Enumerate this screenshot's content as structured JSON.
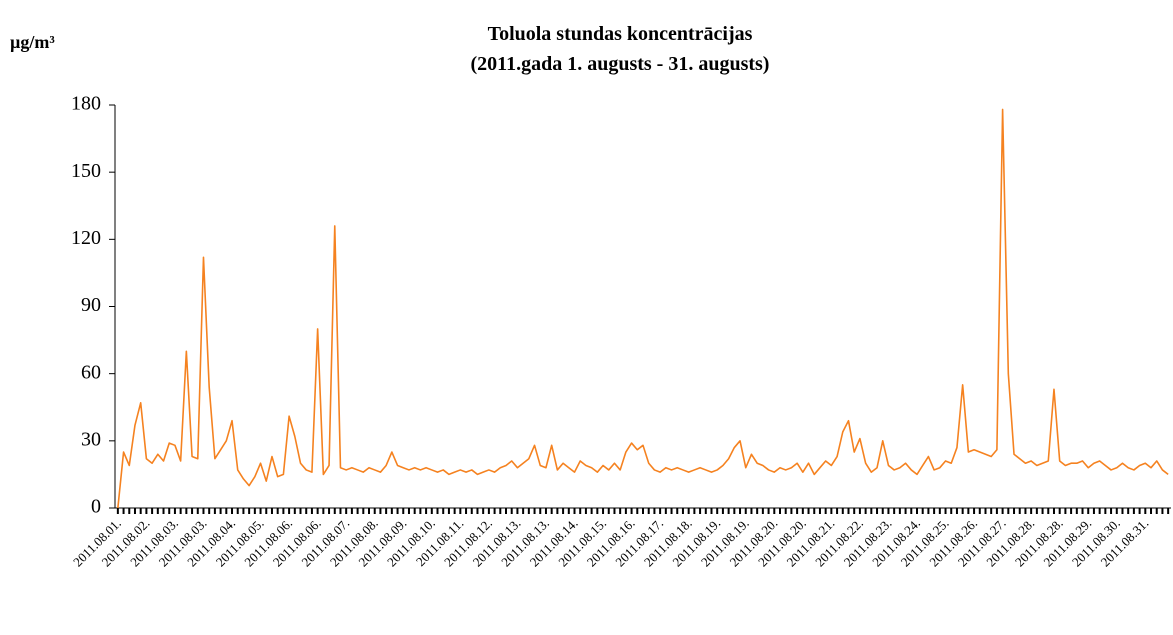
{
  "chart_data": {
    "type": "line",
    "title": "Toluola stundas koncentrācijas",
    "subtitle": "(2011.gada 1. augusts - 31. augusts)",
    "y_label": "µg/m³",
    "color": "#f58220",
    "ylim": [
      0,
      180
    ],
    "yticks": [
      0,
      30,
      60,
      90,
      120,
      150,
      180
    ],
    "categories": [
      "2011.08.01.",
      null,
      null,
      null,
      null,
      "2011.08.02.",
      null,
      null,
      null,
      null,
      "2011.08.03.",
      null,
      null,
      null,
      null,
      "2011.08.03.",
      null,
      null,
      null,
      null,
      "2011.08.04.",
      null,
      null,
      null,
      null,
      "2011.08.05.",
      null,
      null,
      null,
      null,
      "2011.08.06.",
      null,
      null,
      null,
      null,
      "2011.08.06.",
      null,
      null,
      null,
      null,
      "2011.08.07.",
      null,
      null,
      null,
      null,
      "2011.08.08.",
      null,
      null,
      null,
      null,
      "2011.08.09.",
      null,
      null,
      null,
      null,
      "2011.08.10.",
      null,
      null,
      null,
      null,
      "2011.08.11.",
      null,
      null,
      null,
      null,
      "2011.08.12.",
      null,
      null,
      null,
      null,
      "2011.08.13.",
      null,
      null,
      null,
      null,
      "2011.08.13.",
      null,
      null,
      null,
      null,
      "2011.08.14.",
      null,
      null,
      null,
      null,
      "2011.08.15.",
      null,
      null,
      null,
      null,
      "2011.08.16.",
      null,
      null,
      null,
      null,
      "2011.08.17.",
      null,
      null,
      null,
      null,
      "2011.08.18.",
      null,
      null,
      null,
      null,
      "2011.08.19.",
      null,
      null,
      null,
      null,
      "2011.08.19.",
      null,
      null,
      null,
      null,
      "2011.08.20.",
      null,
      null,
      null,
      null,
      "2011.08.20.",
      null,
      null,
      null,
      null,
      "2011.08.21.",
      null,
      null,
      null,
      null,
      "2011.08.22.",
      null,
      null,
      null,
      null,
      "2011.08.23.",
      null,
      null,
      null,
      null,
      "2011.08.24.",
      null,
      null,
      null,
      null,
      "2011.08.25.",
      null,
      null,
      null,
      null,
      "2011.08.26.",
      null,
      null,
      null,
      null,
      "2011.08.27.",
      null,
      null,
      null,
      null,
      "2011.08.28.",
      null,
      null,
      null,
      null,
      "2011.08.28.",
      null,
      null,
      null,
      null,
      "2011.08.29.",
      null,
      null,
      null,
      null,
      "2011.08.30.",
      null,
      null,
      null,
      null,
      "2011.08.31.",
      null,
      null,
      null,
      null
    ],
    "values": [
      0,
      25,
      19,
      37,
      47,
      22,
      20,
      24,
      21,
      29,
      28,
      21,
      70,
      23,
      22,
      112,
      54,
      22,
      26,
      30,
      39,
      17,
      13,
      10,
      14,
      20,
      12,
      23,
      14,
      15,
      41,
      32,
      20,
      17,
      16,
      80,
      15,
      19,
      126,
      18,
      17,
      18,
      17,
      16,
      18,
      17,
      16,
      19,
      25,
      19,
      18,
      17,
      18,
      17,
      18,
      17,
      16,
      17,
      15,
      16,
      17,
      16,
      17,
      15,
      16,
      17,
      16,
      18,
      19,
      21,
      18,
      20,
      22,
      28,
      19,
      18,
      28,
      17,
      20,
      18,
      16,
      21,
      19,
      18,
      16,
      19,
      17,
      20,
      17,
      25,
      29,
      26,
      28,
      20,
      17,
      16,
      18,
      17,
      18,
      17,
      16,
      17,
      18,
      17,
      16,
      17,
      19,
      22,
      27,
      30,
      18,
      24,
      20,
      19,
      17,
      16,
      18,
      17,
      18,
      20,
      16,
      20,
      15,
      18,
      21,
      19,
      23,
      34,
      39,
      25,
      31,
      20,
      16,
      18,
      30,
      19,
      17,
      18,
      20,
      17,
      15,
      19,
      23,
      17,
      18,
      21,
      20,
      27,
      55,
      25,
      26,
      25,
      24,
      23,
      26,
      178,
      60,
      24,
      22,
      20,
      21,
      19,
      20,
      21,
      53,
      21,
      19,
      20,
      20,
      21,
      18,
      20,
      21,
      19,
      17,
      18,
      20,
      18,
      17,
      19,
      20,
      18,
      21,
      17,
      15
    ]
  }
}
